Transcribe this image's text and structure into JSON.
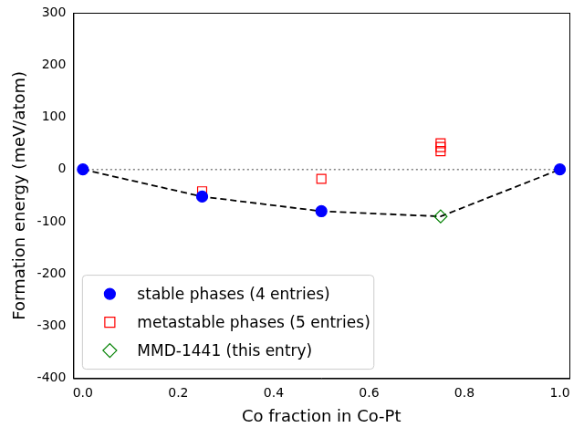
{
  "chart_data": {
    "type": "scatter",
    "x_label": "Co fraction in Co-Pt",
    "y_label": "Formation energy (meV/atom)",
    "xlim": [
      -0.02,
      1.02
    ],
    "xticks": [
      {
        "value": 0,
        "label": "0.0"
      },
      {
        "value": 0.2,
        "label": "0.2"
      },
      {
        "value": 0.4,
        "label": "0.4"
      },
      {
        "value": 0.6,
        "label": "0.6"
      },
      {
        "value": 0.8,
        "label": "0.8"
      },
      {
        "value": 1,
        "label": "1.0"
      }
    ],
    "ylim": [
      -400,
      300
    ],
    "yticks": [
      -400,
      -300,
      -200,
      -100,
      0,
      100,
      200,
      300
    ],
    "grid": false,
    "legend": "lower left",
    "series": [
      {
        "name": "stable phases (4 entries)",
        "type": "scatter",
        "marker": "circle",
        "color": "#0000ff",
        "x": [
          0,
          0.25,
          0.5,
          1
        ],
        "values": [
          0,
          -52,
          -80,
          0
        ]
      },
      {
        "name": "metastable phases (5 entries)",
        "type": "scatter",
        "marker": "hollow-square",
        "color": "#ff0000",
        "x": [
          0.25,
          0.5,
          0.75,
          0.75,
          0.75
        ],
        "values": [
          -42,
          -18,
          50,
          43,
          35
        ]
      },
      {
        "name": "MMD-1441 (this entry)",
        "type": "scatter",
        "marker": "hollow-diamond",
        "color": "#008000",
        "x": [
          0.75
        ],
        "values": [
          -90
        ]
      },
      {
        "type": "line",
        "line_style": "dashed",
        "color": "#000000",
        "x": [
          0,
          0.25,
          0.5,
          0.75,
          1
        ],
        "values": [
          0,
          -52,
          -80,
          -90,
          0
        ]
      },
      {
        "type": "line",
        "line_style": "dotted",
        "color": "#808080",
        "x": [
          0,
          1
        ],
        "values": [
          0,
          0
        ]
      }
    ]
  }
}
